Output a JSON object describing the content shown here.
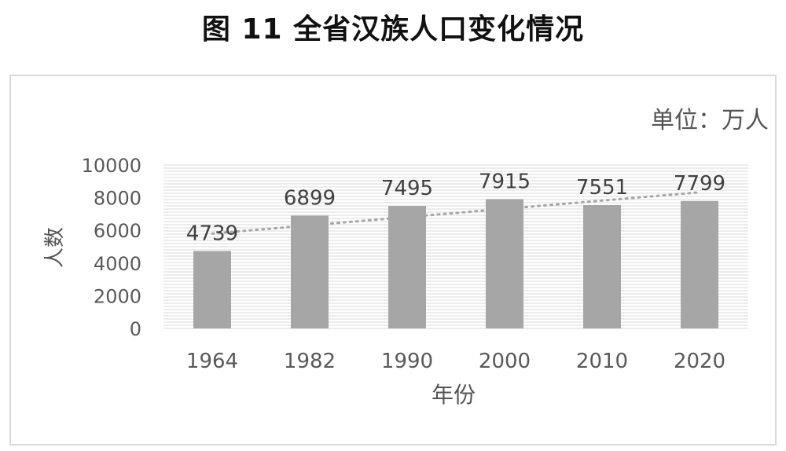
{
  "figure_title": "图 11 全省汉族人口变化情况",
  "unit_label": "单位：万人",
  "chart_data": {
    "type": "bar",
    "categories": [
      "1964",
      "1982",
      "1990",
      "2000",
      "2010",
      "2020"
    ],
    "values": [
      4739,
      6899,
      7495,
      7915,
      7551,
      7799
    ],
    "data_labels": [
      "4739",
      "6899",
      "7495",
      "7915",
      "7551",
      "7799"
    ],
    "xlabel": "年份",
    "ylabel": "人数",
    "ylim": [
      0,
      10000
    ],
    "yticks": [
      0,
      2000,
      4000,
      6000,
      8000,
      10000
    ],
    "trendline": "linear",
    "colors": {
      "bar": "#a6a6a6",
      "trend": "#a6a6a6",
      "grid": "#d9d9d9"
    },
    "grid": true,
    "legend": "none"
  }
}
